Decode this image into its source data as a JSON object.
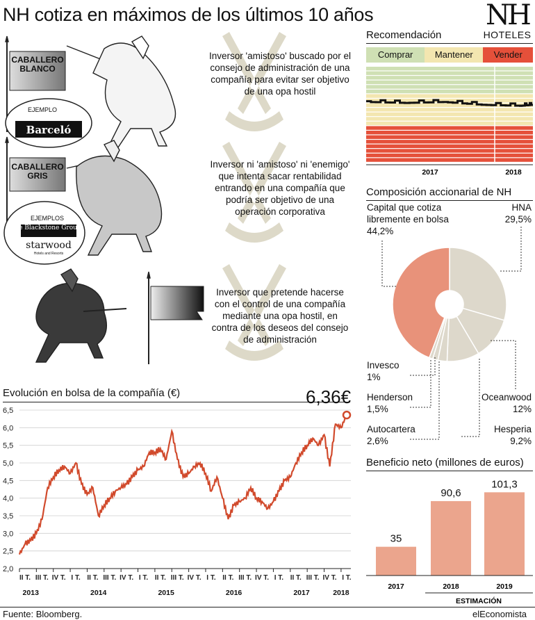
{
  "title": "NH cotiza en máximos de los últimos 10 años",
  "logo": {
    "top": "NH",
    "bottom": "HOTELES"
  },
  "investors": [
    {
      "flag": "CABALLERO BLANCO",
      "example_label": "EJEMPLO",
      "example": "Barceló",
      "description": "Inversor 'amistoso' buscado por el consejo de administración de una compañía para evitar ser objetivo de una opa hostil"
    },
    {
      "flag": "CABALLERO GRIS",
      "example_label": "EJEMPLOS",
      "examples": [
        "The Blackstone Group",
        "starwood",
        "Hotels and Resorts"
      ],
      "description": "Inversor ni 'amistoso' ni 'enemigo' que intenta sacar rentabilidad entrando en una compañía que podría ser objetivo de una operación corporativa"
    },
    {
      "flag": "",
      "description": "Inversor que pretende hacerse con el control de una compañía mediante una opa hostil, en contra de los deseos del consejo de administración"
    }
  ],
  "source": "Fuente: Bloomberg.",
  "brand": "elEconomista",
  "colors": {
    "comprar": "#cfe0b4",
    "mantener": "#f3e6b0",
    "vender": "#e5503a",
    "line": "#d14a2c",
    "pie_main": "#e8927a",
    "pie_other": "#ddd8cb",
    "bar": "#eba58d"
  },
  "chart_data": [
    {
      "type": "line",
      "title": "Evolución en bolsa de la compañía (€)",
      "last_value_label": "6,36€",
      "ylim": [
        2.0,
        6.5
      ],
      "yticks": [
        "2,0",
        "2,5",
        "3,0",
        "3,5",
        "4,0",
        "4,5",
        "5,0",
        "5,5",
        "6,0",
        "6,5"
      ],
      "year_labels": [
        "2013",
        "2014",
        "2015",
        "2016",
        "2017",
        "2018"
      ],
      "quarter_labels": [
        "II T.",
        "III T.",
        "IV T.",
        "I T.",
        "II T.",
        "III T.",
        "IV T.",
        "I T.",
        "II T.",
        "III T.",
        "IV T.",
        "I T.",
        "II T.",
        "III T.",
        "IV T.",
        "I T.",
        "II T.",
        "III T.",
        "IV T.",
        "I T."
      ],
      "x": [
        "2013-04",
        "2013-05",
        "2013-06",
        "2013-07",
        "2013-08",
        "2013-09",
        "2013-10",
        "2013-11",
        "2013-12",
        "2014-01",
        "2014-02",
        "2014-03",
        "2014-04",
        "2014-05",
        "2014-06",
        "2014-07",
        "2014-08",
        "2014-09",
        "2014-10",
        "2014-11",
        "2014-12",
        "2015-01",
        "2015-02",
        "2015-03",
        "2015-04",
        "2015-05",
        "2015-06",
        "2015-07",
        "2015-08",
        "2015-09",
        "2015-10",
        "2015-11",
        "2015-12",
        "2016-01",
        "2016-02",
        "2016-03",
        "2016-04",
        "2016-05",
        "2016-06",
        "2016-07",
        "2016-08",
        "2016-09",
        "2016-10",
        "2016-11",
        "2016-12",
        "2017-01",
        "2017-02",
        "2017-03",
        "2017-04",
        "2017-05",
        "2017-06",
        "2017-07",
        "2017-08",
        "2017-09",
        "2017-10",
        "2017-11",
        "2017-12",
        "2018-01",
        "2018-02"
      ],
      "y": [
        2.4,
        2.7,
        2.8,
        3.0,
        3.4,
        4.3,
        4.6,
        4.8,
        4.9,
        4.7,
        5.0,
        4.4,
        4.1,
        4.3,
        3.5,
        3.8,
        4.0,
        4.2,
        4.3,
        4.4,
        4.6,
        4.8,
        4.9,
        5.3,
        5.3,
        5.4,
        5.1,
        5.9,
        5.1,
        4.6,
        4.7,
        4.9,
        5.0,
        4.7,
        4.2,
        4.6,
        4.0,
        3.4,
        3.8,
        3.9,
        4.0,
        4.3,
        4.0,
        3.9,
        3.7,
        3.9,
        4.2,
        4.5,
        4.6,
        5.0,
        5.3,
        5.5,
        5.7,
        5.5,
        5.8,
        4.9,
        6.1,
        6.0,
        6.36
      ]
    },
    {
      "type": "area",
      "title": "Recomendación",
      "legend": [
        "Comprar",
        "Mantener",
        "Vender"
      ],
      "year_labels": [
        "2017",
        "2018"
      ],
      "x": [
        "2017-01",
        "2017-04",
        "2017-07",
        "2017-10",
        "2018-01",
        "2018-02"
      ],
      "comprar_share": [
        0.36,
        0.37,
        0.36,
        0.39,
        0.4,
        0.39
      ]
    },
    {
      "type": "pie",
      "title": "Composición accionarial de NH",
      "slices": [
        {
          "label": "Capital que cotiza libremente en bolsa",
          "value": 44.2,
          "value_label": "44,2%"
        },
        {
          "label": "HNA",
          "value": 29.5,
          "value_label": "29,5%"
        },
        {
          "label": "Oceanwood",
          "value": 12,
          "value_label": "12%"
        },
        {
          "label": "Hesperia",
          "value": 9.2,
          "value_label": "9,2%"
        },
        {
          "label": "Autocartera",
          "value": 2.6,
          "value_label": "2,6%"
        },
        {
          "label": "Henderson",
          "value": 1.5,
          "value_label": "1,5%"
        },
        {
          "label": "Invesco",
          "value": 1,
          "value_label": "1%"
        }
      ]
    },
    {
      "type": "bar",
      "title": "Beneficio neto (millones de euros)",
      "categories": [
        "2017",
        "2018",
        "2019"
      ],
      "values": [
        35,
        90.6,
        101.3
      ],
      "value_labels": [
        "35",
        "90,6",
        "101,3"
      ],
      "annotation": "ESTIMACIÓN",
      "ylim": [
        0,
        110
      ]
    }
  ]
}
